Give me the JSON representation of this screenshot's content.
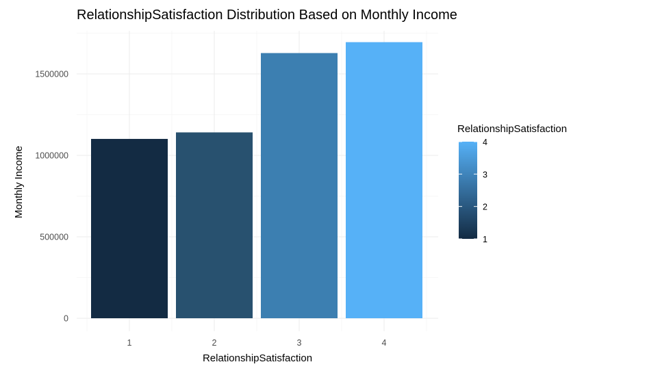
{
  "chart_data": {
    "type": "bar",
    "title": "RelationshipSatisfaction Distribution Based on Monthly Income",
    "xlabel": "RelationshipSatisfaction",
    "ylabel": "Monthly Income",
    "categories": [
      "1",
      "2",
      "3",
      "4"
    ],
    "values": [
      1101000,
      1141000,
      1628000,
      1695000
    ],
    "ylim": [
      0,
      1790000
    ],
    "yticks": [
      0,
      500000,
      1000000,
      1500000
    ],
    "ytick_labels": [
      "0",
      "500000",
      "1000000",
      "1500000"
    ],
    "grid": true,
    "legend": {
      "title": "RelationshipSatisfaction",
      "type": "colorbar",
      "placement": "right",
      "labels": [
        "4",
        "3",
        "2",
        "1"
      ],
      "values": [
        4,
        3,
        2,
        1
      ],
      "color_low": "#132B43",
      "color_high": "#56B1F7"
    },
    "bar_colors": [
      "#132B43",
      "#28516F",
      "#3C7FB1",
      "#56B1F7"
    ]
  }
}
